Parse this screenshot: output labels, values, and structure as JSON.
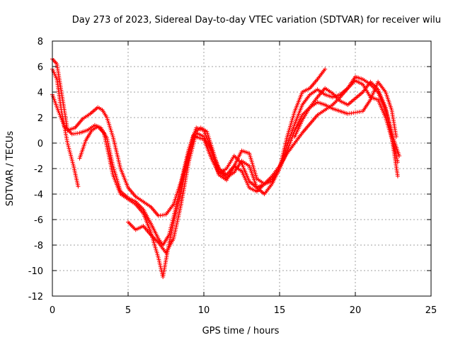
{
  "chart_data": {
    "type": "scatter",
    "title": "Day 273 of 2023, Sidereal Day-to-day VTEC variation (SDTVAR) for receiver wilu",
    "xlabel": "GPS time / hours",
    "ylabel": "SDTVAR / TECUs",
    "xlim": [
      0,
      25
    ],
    "ylim": [
      -12,
      8
    ],
    "x_ticks": [
      0,
      5,
      10,
      15,
      20,
      25
    ],
    "y_ticks": [
      -12,
      -10,
      -8,
      -6,
      -4,
      -2,
      0,
      2,
      4,
      6,
      8
    ],
    "grid": true,
    "marker": "+",
    "color": "#ff0000",
    "series": [
      {
        "name": "track-1",
        "x": [
          0.0,
          0.3,
          0.6,
          1.0,
          1.5,
          2.0,
          2.5,
          3.0,
          3.3,
          3.6,
          4.0,
          4.5,
          5.0,
          5.5,
          6.0,
          6.5,
          7.0,
          7.5,
          8.0,
          8.5,
          9.0,
          9.5,
          10.0,
          10.5,
          11.0,
          11.5,
          12.0,
          12.5,
          13.0,
          13.5,
          14.0,
          14.5,
          15.0,
          15.5,
          16.0,
          16.5,
          17.0,
          17.5,
          18.0
        ],
        "y": [
          6.6,
          6.2,
          4.0,
          1.0,
          1.2,
          1.9,
          2.3,
          2.8,
          2.6,
          2.0,
          0.5,
          -2.0,
          -3.5,
          -4.2,
          -4.6,
          -5.0,
          -5.7,
          -5.6,
          -4.8,
          -3.0,
          -0.5,
          1.2,
          1.0,
          -0.5,
          -2.0,
          -2.5,
          -1.8,
          -0.6,
          -0.8,
          -2.8,
          -3.2,
          -3.0,
          -2.0,
          0.5,
          2.5,
          4.0,
          4.3,
          5.0,
          5.8
        ]
      },
      {
        "name": "track-2",
        "x": [
          0.0,
          0.3,
          0.6,
          1.0,
          1.4,
          1.7
        ],
        "y": [
          5.8,
          5.0,
          2.5,
          0.0,
          -1.8,
          -3.4
        ]
      },
      {
        "name": "track-3",
        "x": [
          0.0,
          0.4,
          0.8,
          1.3,
          1.8,
          2.3,
          2.8,
          3.2,
          3.6,
          4.0,
          4.5,
          5.0,
          5.5,
          6.0,
          6.5,
          7.0,
          7.3,
          7.7,
          8.0,
          8.5,
          9.0,
          9.3,
          9.7,
          10.0,
          10.5,
          11.0,
          11.5,
          12.0,
          12.5,
          13.0,
          13.5,
          14.0,
          14.5,
          15.0,
          15.5,
          16.0,
          16.5,
          17.0,
          17.5,
          18.0,
          18.5,
          19.0,
          19.5,
          20.0,
          20.5,
          21.0,
          21.5,
          22.0,
          22.5,
          22.8
        ],
        "y": [
          3.8,
          2.5,
          1.3,
          0.7,
          0.8,
          1.0,
          1.4,
          1.2,
          0.4,
          -1.8,
          -3.8,
          -4.3,
          -4.6,
          -5.2,
          -6.3,
          -7.5,
          -8.0,
          -7.2,
          -5.8,
          -3.2,
          -0.8,
          0.6,
          0.4,
          0.3,
          -1.2,
          -2.4,
          -2.0,
          -1.0,
          -1.6,
          -3.0,
          -3.5,
          -3.2,
          -2.6,
          -1.8,
          -0.8,
          0.0,
          0.8,
          1.5,
          2.2,
          2.6,
          3.0,
          3.6,
          4.3,
          4.9,
          4.6,
          3.6,
          3.4,
          2.0,
          0.0,
          -1.5
        ]
      },
      {
        "name": "track-4",
        "x": [
          1.8,
          2.2,
          2.6,
          3.0,
          3.4,
          3.7,
          4.0,
          4.5,
          5.0,
          5.5,
          6.0,
          6.5,
          7.0,
          7.3,
          7.6,
          8.0,
          8.5,
          9.0,
          9.4,
          9.8,
          10.2,
          10.6,
          11.0,
          11.5,
          12.0,
          12.5,
          13.0,
          13.5,
          14.0,
          14.5,
          15.0,
          15.5,
          16.0,
          16.5,
          17.0,
          17.5,
          18.0,
          18.5,
          19.0,
          19.5,
          20.0,
          20.5,
          21.0,
          21.5,
          22.0,
          22.4,
          22.7
        ],
        "y": [
          -1.2,
          0.2,
          1.0,
          1.3,
          0.8,
          -0.8,
          -2.5,
          -4.0,
          -4.4,
          -4.8,
          -5.5,
          -7.0,
          -9.0,
          -10.5,
          -8.5,
          -6.2,
          -3.8,
          -1.0,
          0.8,
          1.2,
          0.9,
          -0.6,
          -2.2,
          -2.7,
          -2.3,
          -1.4,
          -1.8,
          -3.5,
          -4.0,
          -3.2,
          -2.0,
          -0.6,
          1.0,
          2.2,
          2.8,
          3.2,
          3.0,
          2.7,
          2.5,
          2.3,
          2.4,
          2.5,
          3.4,
          4.8,
          4.0,
          2.6,
          0.5
        ]
      },
      {
        "name": "track-5",
        "x": [
          5.0,
          5.5,
          6.0,
          6.5,
          7.0,
          7.5,
          8.0,
          8.5,
          9.0,
          9.5,
          10.0,
          10.5,
          11.0,
          11.5,
          12.0,
          12.5,
          13.0,
          13.5,
          14.0,
          14.5,
          15.0,
          15.5,
          16.0,
          16.5,
          17.0,
          17.5,
          18.0,
          18.5,
          19.0,
          19.5,
          20.0,
          20.5,
          21.0,
          21.5,
          22.0,
          22.5,
          22.9
        ],
        "y": [
          -6.2,
          -6.8,
          -6.5,
          -7.2,
          -7.8,
          -8.6,
          -7.5,
          -4.8,
          -1.5,
          0.8,
          0.5,
          -0.6,
          -2.5,
          -2.9,
          -1.8,
          -2.2,
          -3.5,
          -3.8,
          -3.2,
          -2.8,
          -2.0,
          -0.2,
          1.5,
          3.0,
          3.8,
          4.2,
          3.8,
          3.6,
          3.8,
          4.3,
          5.2,
          5.0,
          4.6,
          4.0,
          2.6,
          0.4,
          -1.0
        ]
      },
      {
        "name": "track-6",
        "x": [
          16.0,
          16.5,
          17.0,
          17.5,
          18.0,
          18.5,
          19.0,
          19.5,
          20.0,
          20.5,
          21.0,
          21.5,
          22.0,
          22.4,
          22.8
        ],
        "y": [
          0.5,
          1.8,
          2.8,
          3.6,
          4.3,
          3.9,
          3.3,
          3.0,
          3.5,
          4.0,
          4.8,
          4.2,
          2.8,
          0.5,
          -2.6
        ]
      }
    ]
  }
}
